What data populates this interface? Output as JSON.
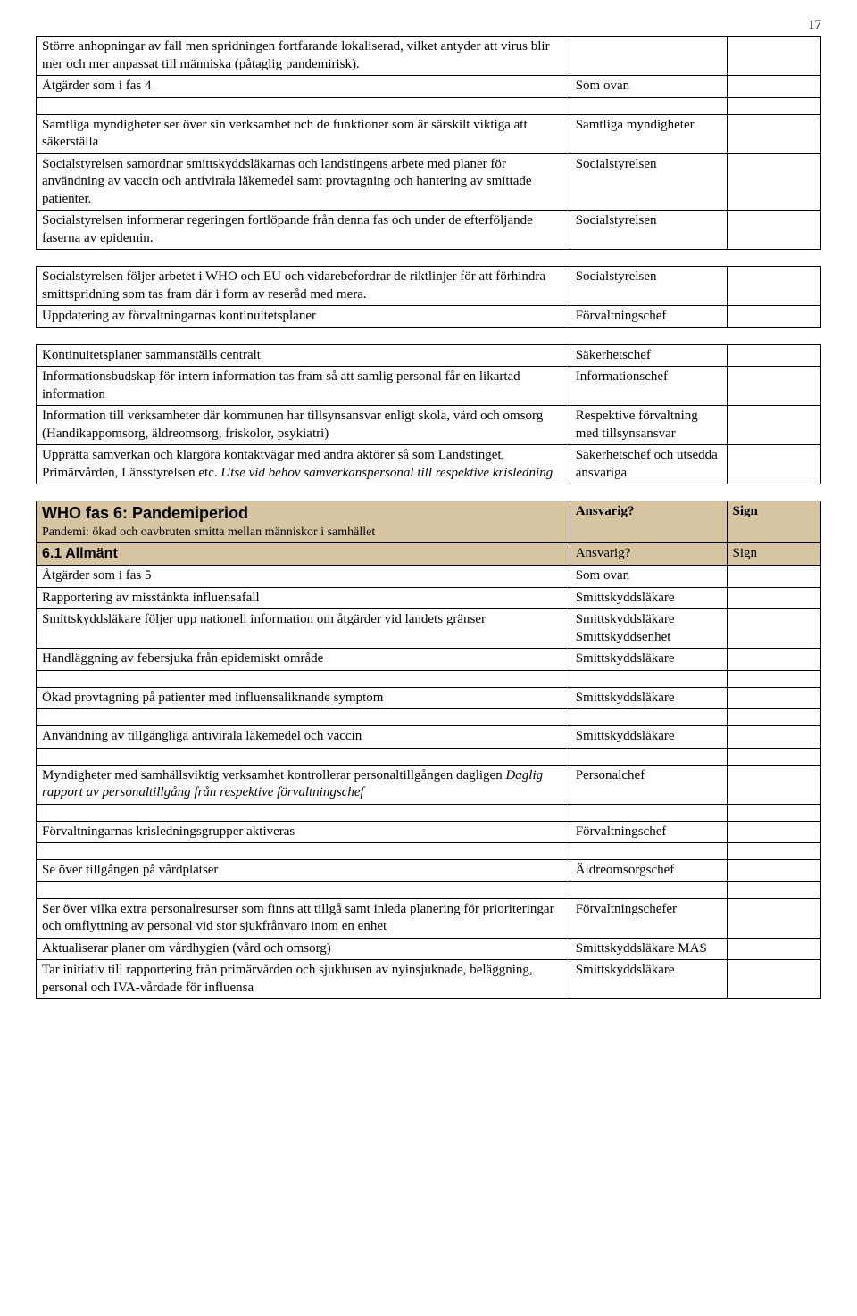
{
  "page_number": "17",
  "colors": {
    "header_bg": "#d6c5a0",
    "border": "#000000",
    "text": "#000000",
    "background": "#ffffff"
  },
  "block1": {
    "r1_c1": "Större anhopningar av fall men spridningen fortfarande lokaliserad, vilket antyder att virus blir mer och mer anpassat till människa (påtaglig pandemirisk).",
    "r2_c1": "Åtgärder som i fas 4",
    "r2_c2": "Som ovan",
    "r3_c1": "Samtliga myndigheter ser över sin verksamhet och de funktioner som är särskilt viktiga att säkerställa",
    "r3_c2": "Samtliga myndigheter",
    "r4_c1": "Socialstyrelsen samordnar smittskyddsläkarnas och landstingens arbete med planer för användning av vaccin och antivirala läkemedel samt provtagning och hantering av smittade patienter.",
    "r4_c2": "Socialstyrelsen",
    "r5_c1": "Socialstyrelsen informerar regeringen fortlöpande från denna fas och under de efterföljande faserna av epidemin.",
    "r5_c2": "Socialstyrelsen"
  },
  "block2": {
    "r1_c1": "Socialstyrelsen följer arbetet i WHO och EU och vidarebefordrar de riktlinjer för att förhindra smittspridning som tas fram där i form av reseråd med mera.",
    "r1_c2": "Socialstyrelsen",
    "r2_c1": "Uppdatering av förvaltningarnas kontinuitetsplaner",
    "r2_c2": "Förvaltningschef"
  },
  "block3": {
    "r1_c1": "Kontinuitetsplaner sammanställs centralt",
    "r1_c2": "Säkerhetschef",
    "r2_c1": "Informationsbudskap för intern information tas fram så att samlig personal får en likartad information",
    "r2_c2": "Informationschef",
    "r3_c1": "Information till verksamheter där kommunen har tillsynsansvar enligt skola, vård och omsorg (Handikappomsorg, äldreomsorg, friskolor, psykiatri)",
    "r3_c2": "Respektive förvaltning med tillsynsansvar",
    "r4_c1_a": "Upprätta samverkan och klargöra kontaktvägar med andra aktörer så som Landstinget, Primärvården, Länsstyrelsen etc. ",
    "r4_c1_b": "Utse vid behov samverkanspersonal till respektive krisledning",
    "r4_c2": "Säkerhetschef och utsedda ansvariga"
  },
  "who6": {
    "title": "WHO fas 6: Pandemiperiod",
    "subtitle": "Pandemi: ökad och oavbruten smitta mellan människor i samhället",
    "ansvarig": "Ansvarig?",
    "sign": "Sign"
  },
  "sec61": {
    "title": "6.1 Allmänt",
    "ansvarig": "Ansvarig?",
    "sign": "Sign",
    "r1_c1": "Åtgärder som i fas 5",
    "r1_c2": "Som ovan",
    "r2_c1": "Rapportering av misstänkta influensafall",
    "r2_c2": "Smittskyddsläkare",
    "r3_c1": "Smittskyddsläkare följer upp nationell information om åtgärder vid landets gränser",
    "r3_c2": "Smittskyddsläkare Smittskyddsenhet",
    "r4_c1": "Handläggning av febersjuka från epidemiskt område",
    "r4_c2": "Smittskyddsläkare",
    "r5_c1": "Ökad provtagning på patienter med influensaliknande symptom",
    "r5_c2": "Smittskyddsläkare",
    "r6_c1": "Användning av tillgängliga antivirala läkemedel och vaccin",
    "r6_c2": "Smittskyddsläkare",
    "r7_c1_a": "Myndigheter med samhällsviktig verksamhet kontrollerar personaltillgången dagligen ",
    "r7_c1_b": "Daglig rapport av personaltillgång från respektive förvaltningschef",
    "r7_c2": "Personalchef",
    "r8_c1": "Förvaltningarnas krisledningsgrupper aktiveras",
    "r8_c2": "Förvaltningschef",
    "r9_c1": "Se över tillgången på vårdplatser",
    "r9_c2": "Äldreomsorgschef",
    "r10_c1": "Ser över vilka extra personalresurser som finns att tillgå samt inleda planering för prioriteringar och omflyttning av personal vid stor sjukfrånvaro inom en enhet",
    "r10_c2": "Förvaltningschefer",
    "r11_c1": "Aktualiserar planer om vårdhygien (vård och omsorg)",
    "r11_c2": "Smittskyddsläkare MAS",
    "r12_c1": "Tar initiativ till rapportering från primärvården och sjukhusen av nyinsjuknade, beläggning, personal och IVA-vårdade för influensa",
    "r12_c2": "Smittskyddsläkare"
  }
}
